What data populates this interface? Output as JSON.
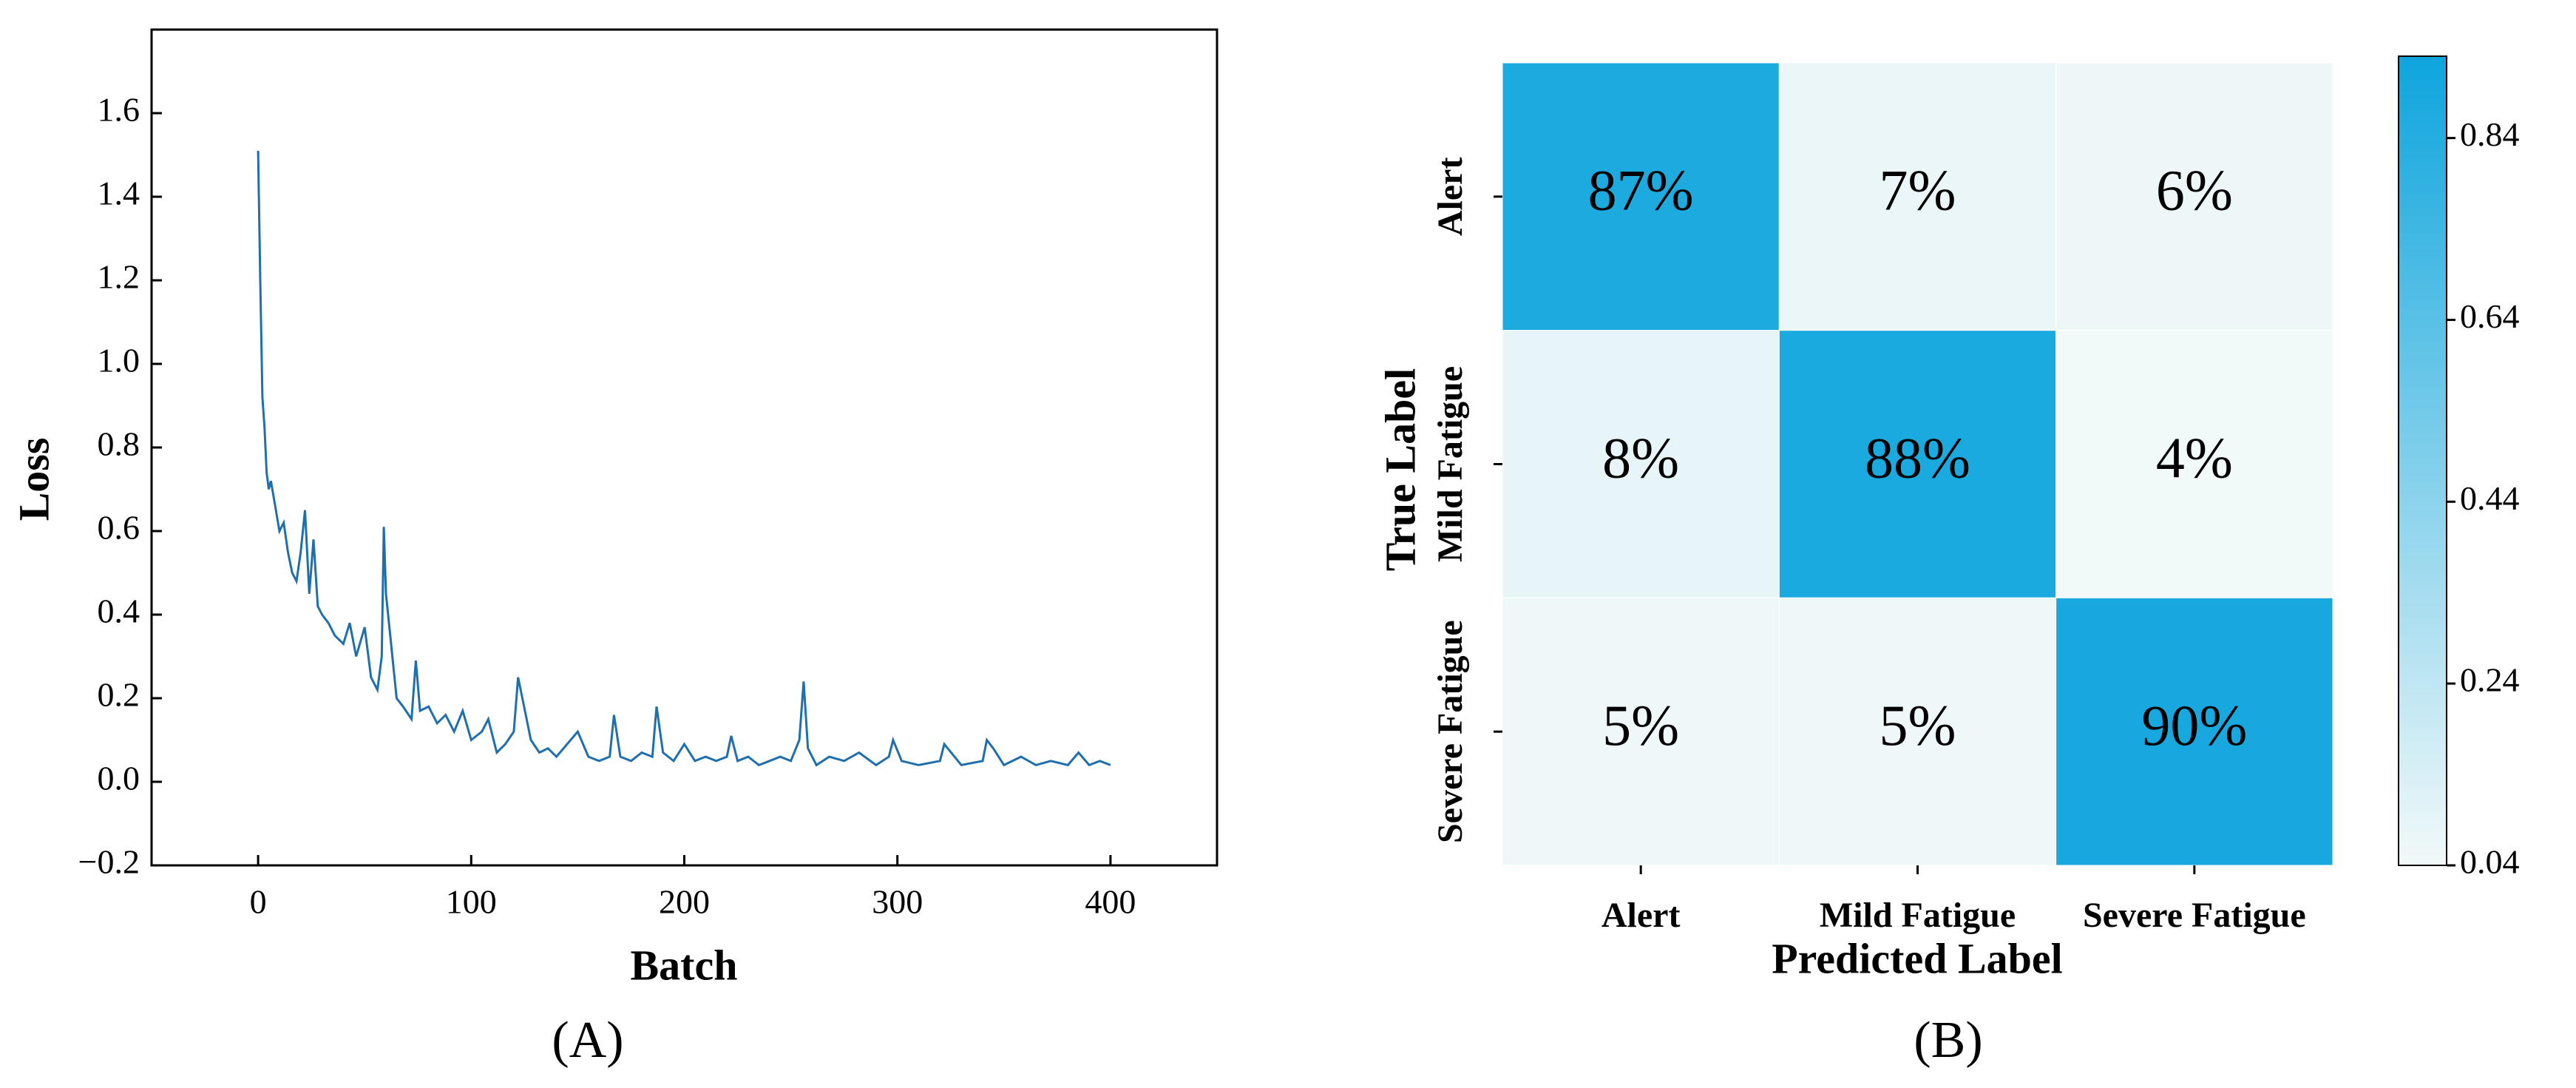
{
  "chart_data": [
    {
      "type": "line",
      "xlabel": "Batch",
      "ylabel": "Loss",
      "caption": "(A)",
      "color": "#1f6fae",
      "x": [
        0,
        1,
        2,
        3,
        4,
        5,
        6,
        8,
        10,
        12,
        14,
        16,
        18,
        20,
        22,
        24,
        26,
        28,
        30,
        33,
        36,
        40,
        43,
        46,
        50,
        53,
        56,
        58,
        59,
        60,
        62,
        65,
        68,
        72,
        74,
        76,
        80,
        84,
        88,
        92,
        96,
        100,
        105,
        108,
        112,
        116,
        120,
        122,
        124,
        128,
        132,
        136,
        140,
        145,
        150,
        155,
        160,
        165,
        167,
        170,
        175,
        180,
        185,
        187,
        190,
        195,
        200,
        205,
        210,
        215,
        220,
        222,
        225,
        230,
        235,
        240,
        245,
        250,
        254,
        256,
        258,
        262,
        268,
        275,
        282,
        290,
        296,
        298,
        302,
        310,
        320,
        322,
        330,
        340,
        342,
        345,
        350,
        358,
        365,
        372,
        380,
        385,
        390,
        395,
        400
      ],
      "values": [
        1.51,
        1.2,
        0.92,
        0.85,
        0.74,
        0.7,
        0.72,
        0.66,
        0.6,
        0.62,
        0.55,
        0.5,
        0.48,
        0.55,
        0.65,
        0.45,
        0.58,
        0.42,
        0.4,
        0.38,
        0.35,
        0.33,
        0.38,
        0.3,
        0.37,
        0.25,
        0.22,
        0.3,
        0.61,
        0.45,
        0.35,
        0.2,
        0.18,
        0.15,
        0.29,
        0.17,
        0.18,
        0.14,
        0.16,
        0.12,
        0.17,
        0.1,
        0.12,
        0.15,
        0.07,
        0.09,
        0.12,
        0.25,
        0.2,
        0.1,
        0.07,
        0.08,
        0.06,
        0.09,
        0.12,
        0.06,
        0.05,
        0.06,
        0.16,
        0.06,
        0.05,
        0.07,
        0.06,
        0.18,
        0.07,
        0.05,
        0.09,
        0.05,
        0.06,
        0.05,
        0.06,
        0.11,
        0.05,
        0.06,
        0.04,
        0.05,
        0.06,
        0.05,
        0.1,
        0.24,
        0.08,
        0.04,
        0.06,
        0.05,
        0.07,
        0.04,
        0.06,
        0.1,
        0.05,
        0.04,
        0.05,
        0.09,
        0.04,
        0.05,
        0.1,
        0.08,
        0.04,
        0.06,
        0.04,
        0.05,
        0.04,
        0.07,
        0.04,
        0.05,
        0.04
      ],
      "xlim": [
        -50,
        450
      ],
      "xticks": [
        0,
        100,
        200,
        300,
        400
      ],
      "ylim": [
        -0.2,
        1.8
      ],
      "yticks": [
        {
          "value": -0.2,
          "label": "−0.2"
        },
        {
          "value": 0,
          "label": "0.0"
        },
        0.2,
        0.4,
        0.6,
        0.8,
        {
          "value": 1,
          "label": "1.0"
        },
        1.2,
        1.4,
        1.6
      ]
    },
    {
      "type": "heatmap",
      "xlabel": "Predicted Label",
      "ylabel": "True Label",
      "caption": "(B)",
      "x_categories": [
        "Alert",
        "Mild Fatigue",
        "Severe Fatigue"
      ],
      "y_categories": [
        "Alert",
        "Mild Fatigue",
        "Severe Fatigue"
      ],
      "values": [
        [
          0.87,
          0.07,
          0.06
        ],
        [
          0.08,
          0.88,
          0.04
        ],
        [
          0.05,
          0.05,
          0.9
        ]
      ],
      "value_labels": [
        [
          "87%",
          "7%",
          "6%"
        ],
        [
          "8%",
          "88%",
          "4%"
        ],
        [
          "5%",
          "5%",
          "90%"
        ]
      ],
      "colors": [
        "#f2f9f9",
        "#0ea5dd"
      ],
      "clim": [
        0.04,
        0.93
      ],
      "cticks": [
        0.04,
        0.24,
        0.44,
        0.64,
        0.84
      ]
    }
  ]
}
